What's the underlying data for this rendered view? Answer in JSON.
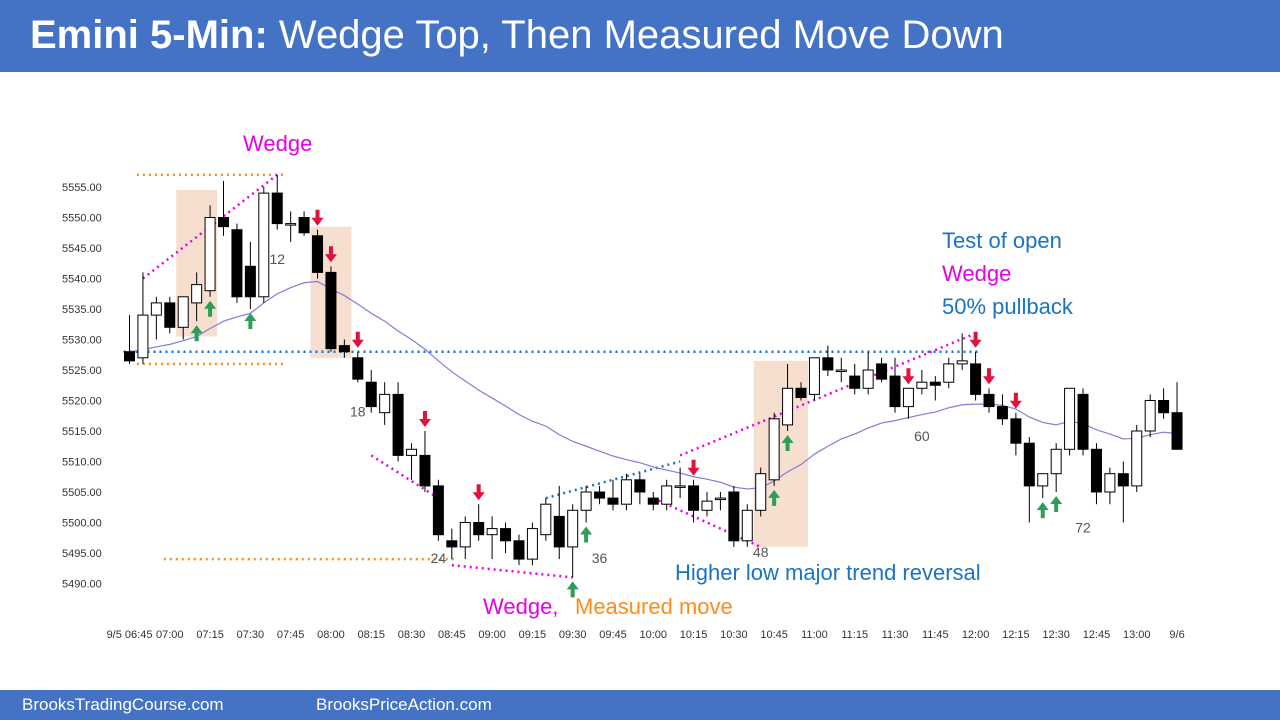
{
  "header": {
    "title_bold": "Emini 5-Min:",
    "title_rest": "Wedge Top, Then Measured Move Down"
  },
  "footer": {
    "left": "BrooksTradingCourse.com",
    "right": "BrooksPriceAction.com"
  },
  "colors": {
    "header_bg": "#4472c4",
    "bull_fill": "#ffffff",
    "bear_fill": "#000000",
    "ema": "#7f7fd6",
    "wedge": "#e600e6",
    "measured": "#ff8c1a",
    "trend": "#1a73c4",
    "highlight": "#f4d9c6",
    "up_arrow": "#2e9e57",
    "down_arrow": "#e0113a"
  },
  "chart_data": {
    "type": "candlestick",
    "y_ticks": [
      "5555.00",
      "5550.00",
      "5545.00",
      "5540.00",
      "5535.00",
      "5530.00",
      "5525.00",
      "5520.00",
      "5515.00",
      "5510.00",
      "5505.00",
      "5500.00",
      "5495.00",
      "5490.00"
    ],
    "y_tick_values": [
      5555,
      5550,
      5545,
      5540,
      5535,
      5530,
      5525,
      5520,
      5515,
      5510,
      5505,
      5500,
      5495,
      5490
    ],
    "ylim": [
      5488,
      5560
    ],
    "x_ticks": [
      {
        "label": "9/5 06:45",
        "bar": 0
      },
      {
        "label": "07:00",
        "bar": 3
      },
      {
        "label": "07:15",
        "bar": 6
      },
      {
        "label": "07:30",
        "bar": 9
      },
      {
        "label": "07:45",
        "bar": 12
      },
      {
        "label": "08:00",
        "bar": 15
      },
      {
        "label": "08:15",
        "bar": 18
      },
      {
        "label": "08:30",
        "bar": 21
      },
      {
        "label": "08:45",
        "bar": 24
      },
      {
        "label": "09:00",
        "bar": 27
      },
      {
        "label": "09:15",
        "bar": 30
      },
      {
        "label": "09:30",
        "bar": 33
      },
      {
        "label": "09:45",
        "bar": 36
      },
      {
        "label": "10:00",
        "bar": 39
      },
      {
        "label": "10:15",
        "bar": 42
      },
      {
        "label": "10:30",
        "bar": 45
      },
      {
        "label": "10:45",
        "bar": 48
      },
      {
        "label": "11:00",
        "bar": 51
      },
      {
        "label": "11:15",
        "bar": 54
      },
      {
        "label": "11:30",
        "bar": 57
      },
      {
        "label": "11:45",
        "bar": 60
      },
      {
        "label": "12:00",
        "bar": 63
      },
      {
        "label": "12:15",
        "bar": 66
      },
      {
        "label": "12:30",
        "bar": 69
      },
      {
        "label": "12:45",
        "bar": 72
      },
      {
        "label": "13:00",
        "bar": 75
      },
      {
        "label": "9/6",
        "bar": 78
      }
    ],
    "candles": [
      [
        5528.0,
        5534.0,
        5526.0,
        5526.5
      ],
      [
        5527.0,
        5541.0,
        5526.0,
        5534.0
      ],
      [
        5534.0,
        5537.0,
        5530.0,
        5536.0
      ],
      [
        5536.0,
        5537.0,
        5531.0,
        5532.0
      ],
      [
        5532.0,
        5537.0,
        5530.0,
        5537.0
      ],
      [
        5536.0,
        5541.0,
        5533.0,
        5539.0
      ],
      [
        5538.0,
        5552.0,
        5537.0,
        5550.0
      ],
      [
        5550.0,
        5556.0,
        5547.0,
        5548.5
      ],
      [
        5548.0,
        5549.0,
        5536.0,
        5537.0
      ],
      [
        5542.0,
        5546.0,
        5535.0,
        5537.0
      ],
      [
        5537.0,
        5555.0,
        5536.0,
        5554.0
      ],
      [
        5554.0,
        5557.0,
        5548.0,
        5549.0
      ],
      [
        5549.0,
        5551.0,
        5546.0,
        5549.0
      ],
      [
        5550.0,
        5551.0,
        5547.0,
        5547.5
      ],
      [
        5547.0,
        5548.0,
        5540.0,
        5541.0
      ],
      [
        5541.0,
        5542.0,
        5528.0,
        5528.5
      ],
      [
        5529.0,
        5530.0,
        5527.0,
        5528.0
      ],
      [
        5527.0,
        5528.0,
        5523.0,
        5523.5
      ],
      [
        5523.0,
        5525.0,
        5518.0,
        5519.0
      ],
      [
        5518.0,
        5523.0,
        5516.0,
        5521.0
      ],
      [
        5521.0,
        5523.0,
        5510.0,
        5511.0
      ],
      [
        5511.0,
        5513.0,
        5507.0,
        5512.0
      ],
      [
        5511.0,
        5515.0,
        5505.0,
        5506.0
      ],
      [
        5506.0,
        5507.0,
        5497.0,
        5498.0
      ],
      [
        5497.0,
        5499.0,
        5494.0,
        5496.0
      ],
      [
        5496.0,
        5501.0,
        5494.0,
        5500.0
      ],
      [
        5500.0,
        5503.0,
        5497.0,
        5498.0
      ],
      [
        5498.0,
        5501.0,
        5494.0,
        5499.0
      ],
      [
        5499.0,
        5500.0,
        5495.0,
        5497.0
      ],
      [
        5497.0,
        5498.0,
        5493.0,
        5494.0
      ],
      [
        5494.0,
        5500.0,
        5493.0,
        5499.0
      ],
      [
        5498.0,
        5504.0,
        5497.0,
        5503.0
      ],
      [
        5501.0,
        5506.0,
        5494.0,
        5496.0
      ],
      [
        5496.0,
        5503.0,
        5491.0,
        5502.0
      ],
      [
        5502.0,
        5506.0,
        5500.0,
        5505.0
      ],
      [
        5505.0,
        5506.0,
        5503.0,
        5504.0
      ],
      [
        5504.0,
        5507.0,
        5502.0,
        5503.0
      ],
      [
        5503.0,
        5508.0,
        5502.0,
        5507.0
      ],
      [
        5507.0,
        5508.0,
        5503.0,
        5505.0
      ],
      [
        5504.0,
        5505.0,
        5502.0,
        5503.0
      ],
      [
        5503.0,
        5507.0,
        5502.0,
        5506.0
      ],
      [
        5506.0,
        5509.0,
        5504.0,
        5506.0
      ],
      [
        5506.0,
        5507.0,
        5500.0,
        5502.0
      ],
      [
        5502.0,
        5505.0,
        5501.0,
        5503.5
      ],
      [
        5504.0,
        5505.0,
        5502.0,
        5504.0
      ],
      [
        5505.0,
        5506.0,
        5496.0,
        5497.0
      ],
      [
        5497.0,
        5503.0,
        5496.0,
        5502.0
      ],
      [
        5502.0,
        5509.0,
        5501.0,
        5508.0
      ],
      [
        5507.0,
        5518.0,
        5506.0,
        5517.0
      ],
      [
        5516.0,
        5526.0,
        5515.0,
        5522.0
      ],
      [
        5522.0,
        5523.0,
        5520.0,
        5520.5
      ],
      [
        5521.0,
        5527.0,
        5520.0,
        5527.0
      ],
      [
        5527.0,
        5529.0,
        5524.0,
        5525.0
      ],
      [
        5525.0,
        5527.0,
        5523.0,
        5525.0
      ],
      [
        5524.0,
        5526.0,
        5521.0,
        5522.0
      ],
      [
        5522.0,
        5528.0,
        5521.0,
        5525.0
      ],
      [
        5526.0,
        5527.0,
        5523.0,
        5523.5
      ],
      [
        5524.0,
        5527.0,
        5518.0,
        5519.0
      ],
      [
        5519.0,
        5522.0,
        5517.0,
        5522.0
      ],
      [
        5522.0,
        5525.0,
        5521.0,
        5523.0
      ],
      [
        5523.0,
        5524.0,
        5520.0,
        5522.5
      ],
      [
        5523.0,
        5527.0,
        5522.0,
        5526.0
      ],
      [
        5526.0,
        5531.0,
        5525.0,
        5526.5
      ],
      [
        5526.0,
        5528.0,
        5520.0,
        5521.0
      ],
      [
        5521.0,
        5522.0,
        5518.0,
        5519.0
      ],
      [
        5519.0,
        5521.0,
        5516.0,
        5517.0
      ],
      [
        5517.0,
        5518.0,
        5511.0,
        5513.0
      ],
      [
        5513.0,
        5514.0,
        5500.0,
        5506.0
      ],
      [
        5506.0,
        5508.0,
        5504.0,
        5508.0
      ],
      [
        5508.0,
        5513.0,
        5505.0,
        5512.0
      ],
      [
        5512.0,
        5522.0,
        5511.0,
        5522.0
      ],
      [
        5521.0,
        5522.0,
        5511.0,
        5512.0
      ],
      [
        5512.0,
        5513.0,
        5503.0,
        5505.0
      ],
      [
        5505.0,
        5509.0,
        5503.0,
        5508.0
      ],
      [
        5508.0,
        5510.0,
        5500.0,
        5506.0
      ],
      [
        5506.0,
        5516.0,
        5505.0,
        5515.0
      ],
      [
        5515.0,
        5521.0,
        5514.0,
        5520.0
      ],
      [
        5520.0,
        5522.0,
        5517.0,
        5518.0
      ],
      [
        5518.0,
        5523.0,
        5512.0,
        5512.0
      ]
    ],
    "ema_20": [
      5528,
      5528.3,
      5528.8,
      5529.2,
      5529.8,
      5530.5,
      5531.8,
      5533.0,
      5533.7,
      5534.3,
      5536.0,
      5537.5,
      5538.5,
      5539.3,
      5539.5,
      5538.3,
      5537.2,
      5535.8,
      5534.3,
      5533.0,
      5531.4,
      5530.0,
      5528.4,
      5526.5,
      5524.7,
      5523.2,
      5521.7,
      5520.4,
      5519.1,
      5517.7,
      5516.6,
      5515.8,
      5514.4,
      5513.3,
      5512.5,
      5511.7,
      5510.9,
      5510.3,
      5509.8,
      5509.1,
      5508.6,
      5508.1,
      5507.5,
      5507.1,
      5506.6,
      5505.8,
      5505.5,
      5505.7,
      5506.8,
      5508.3,
      5509.5,
      5511.2,
      5512.5,
      5513.7,
      5514.5,
      5515.5,
      5516.3,
      5516.7,
      5517.2,
      5517.7,
      5518.1,
      5518.8,
      5519.3,
      5519.4,
      5519.4,
      5519.2,
      5518.6,
      5517.3,
      5516.4,
      5516.0,
      5516.6,
      5516.2,
      5515.2,
      5514.5,
      5513.7,
      5513.8,
      5514.4,
      5514.8,
      5514.6
    ],
    "annotations": {
      "wedge_top": "Wedge",
      "test_of_open": "Test of open",
      "wedge_right": "Wedge",
      "pullback": "50% pullback",
      "higher_low": "Higher low major trend reversal",
      "wedge_bottom": "Wedge,",
      "measured_move": "Measured move"
    },
    "bar_numbers": [
      {
        "label": "12",
        "bar": 11,
        "price": 5543
      },
      {
        "label": "18",
        "bar": 17,
        "price": 5518
      },
      {
        "label": "24",
        "bar": 23,
        "price": 5494
      },
      {
        "label": "36",
        "bar": 35,
        "price": 5494
      },
      {
        "label": "48",
        "bar": 47,
        "price": 5495
      },
      {
        "label": "60",
        "bar": 59,
        "price": 5514
      },
      {
        "label": "72",
        "bar": 71,
        "price": 5499
      }
    ],
    "up_arrows": [
      5,
      6,
      9,
      33,
      34,
      48,
      49,
      68,
      69
    ],
    "down_arrows": [
      14,
      15,
      17,
      22,
      26,
      42,
      58,
      63,
      64,
      66
    ],
    "highlight_zones": [
      {
        "from_bar": 4,
        "to_bar": 6,
        "top": 5554.5,
        "bottom": 5530.5
      },
      {
        "from_bar": 14,
        "to_bar": 16,
        "top": 5548.5,
        "bottom": 5527
      },
      {
        "from_bar": 47,
        "to_bar": 50,
        "top": 5526.5,
        "bottom": 5496
      }
    ],
    "levels": [
      {
        "name": "opening-high",
        "price": 5557,
        "from_bar": 1,
        "to_bar": 11,
        "color": "measured"
      },
      {
        "name": "opening-low",
        "price": 5526,
        "from_bar": 1,
        "to_bar": 11,
        "color": "measured"
      },
      {
        "name": "measured-target",
        "price": 5494,
        "from_bar": 3,
        "to_bar": 24,
        "color": "measured"
      },
      {
        "name": "open-line",
        "price": 5528,
        "from_bar": 0,
        "to_bar": 63,
        "color": "trend"
      }
    ]
  }
}
